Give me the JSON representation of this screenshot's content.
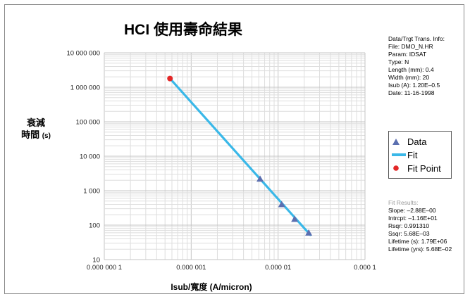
{
  "chart_data": {
    "type": "scatter",
    "title": "HCI 使用壽命結果",
    "ylabel_line1": "衰減",
    "ylabel_line2": "時間",
    "ylabel_unit": "(s)",
    "xlabel": "Isub/寬度 (A/micron)",
    "xscale": "log",
    "yscale": "log",
    "xlim": [
      1e-07,
      0.0001
    ],
    "ylim": [
      10,
      10000000
    ],
    "grid": true,
    "x_ticks": [
      {
        "value": 1e-07,
        "label": "0.000 000 1"
      },
      {
        "value": 1e-06,
        "label": "0.000 001"
      },
      {
        "value": 1e-05,
        "label": "0.000 01"
      },
      {
        "value": 0.0001,
        "label": "0.000 1"
      }
    ],
    "y_ticks": [
      {
        "value": 10,
        "label": "10"
      },
      {
        "value": 100,
        "label": "100"
      },
      {
        "value": 1000,
        "label": "1 000"
      },
      {
        "value": 10000,
        "label": "10 000"
      },
      {
        "value": 100000,
        "label": "100 000"
      },
      {
        "value": 1000000,
        "label": "1 000 000"
      },
      {
        "value": 10000000,
        "label": "10 000 000"
      }
    ],
    "series": [
      {
        "name": "Data",
        "marker": "triangle",
        "color": "#5b6fb0",
        "points": [
          [
            6.2e-06,
            2200
          ],
          [
            1.1e-05,
            400
          ],
          [
            1.55e-05,
            150
          ],
          [
            2.25e-05,
            60
          ]
        ]
      },
      {
        "name": "Fit",
        "marker": "line",
        "color": "#3ab8e8",
        "points": [
          [
            5.7e-07,
            1790000
          ],
          [
            2.35e-05,
            52
          ]
        ]
      },
      {
        "name": "Fit Point",
        "marker": "circle",
        "color": "#e32727",
        "points": [
          [
            5.7e-07,
            1790000
          ]
        ]
      }
    ],
    "legend_position": "right"
  },
  "info": [
    "Data/Trgt Trans. Info:",
    "File: DMO_N.HR",
    "Param: IDSAT",
    "Type: N",
    "Length (mm): 0.4",
    "Width (mm): 20",
    "Isub (A): 1.20E–0.5",
    "Date: 11-16-1998"
  ],
  "results": [
    "Fit Results:",
    "Slope: –2.88E–00",
    "Intrcpt: –1.16E+01",
    "Rsqr: 0.991310",
    "Ssqr: 5.68E–03",
    "Lifetime (s): 1.79E+06",
    "Lifetime (yrs): 5.68E–02"
  ]
}
